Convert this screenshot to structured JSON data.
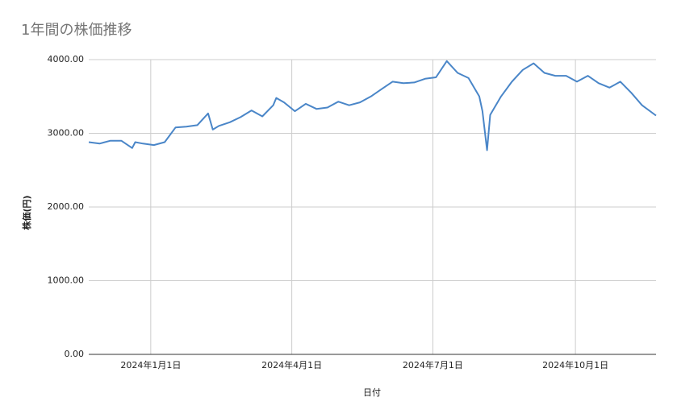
{
  "chart_data": {
    "type": "line",
    "title": "1年間の株価推移",
    "xlabel": "日付",
    "ylabel": "株価(円)",
    "x": [
      "2023-11-22",
      "2023-11-29",
      "2023-12-06",
      "2023-12-13",
      "2023-12-20",
      "2023-12-22",
      "2023-12-27",
      "2024-01-03",
      "2024-01-10",
      "2024-01-17",
      "2024-01-24",
      "2024-01-31",
      "2024-02-07",
      "2024-02-10",
      "2024-02-14",
      "2024-02-21",
      "2024-02-28",
      "2024-03-06",
      "2024-03-13",
      "2024-03-20",
      "2024-03-22",
      "2024-03-27",
      "2024-04-03",
      "2024-04-10",
      "2024-04-17",
      "2024-04-24",
      "2024-05-01",
      "2024-05-08",
      "2024-05-15",
      "2024-05-22",
      "2024-05-29",
      "2024-06-05",
      "2024-06-12",
      "2024-06-19",
      "2024-06-26",
      "2024-07-03",
      "2024-07-10",
      "2024-07-17",
      "2024-07-24",
      "2024-07-31",
      "2024-08-02",
      "2024-08-05",
      "2024-08-07",
      "2024-08-14",
      "2024-08-21",
      "2024-08-28",
      "2024-09-04",
      "2024-09-11",
      "2024-09-18",
      "2024-09-25",
      "2024-10-02",
      "2024-10-09",
      "2024-10-16",
      "2024-10-23",
      "2024-10-30",
      "2024-11-06",
      "2024-11-13",
      "2024-11-22"
    ],
    "series": [
      {
        "name": "株価(円)",
        "color": "#4a86c8",
        "values": [
          2880,
          2860,
          2900,
          2900,
          2800,
          2880,
          2860,
          2840,
          2880,
          3080,
          3090,
          3110,
          3270,
          3050,
          3100,
          3150,
          3220,
          3310,
          3230,
          3380,
          3480,
          3420,
          3300,
          3400,
          3330,
          3350,
          3430,
          3380,
          3420,
          3500,
          3600,
          3700,
          3680,
          3690,
          3740,
          3760,
          3980,
          3820,
          3750,
          3500,
          3300,
          2770,
          3250,
          3500,
          3700,
          3860,
          3950,
          3820,
          3780,
          3780,
          3700,
          3780,
          3680,
          3620,
          3700,
          3550,
          3380,
          3240
        ]
      }
    ],
    "xlim": [
      "2023-11-22",
      "2024-11-22"
    ],
    "xticks": [
      {
        "value": "2024-01-01",
        "label": "2024年1月1日"
      },
      {
        "value": "2024-04-01",
        "label": "2024年4月1日"
      },
      {
        "value": "2024-07-01",
        "label": "2024年7月1日"
      },
      {
        "value": "2024-10-01",
        "label": "2024年10月1日"
      }
    ],
    "ylim": [
      0,
      4000
    ],
    "yticks": [
      {
        "value": 0,
        "label": "0.00"
      },
      {
        "value": 1000,
        "label": "1000.00"
      },
      {
        "value": 2000,
        "label": "2000.00"
      },
      {
        "value": 3000,
        "label": "3000.00"
      },
      {
        "value": 4000,
        "label": "4000.00"
      }
    ],
    "grid": true
  }
}
